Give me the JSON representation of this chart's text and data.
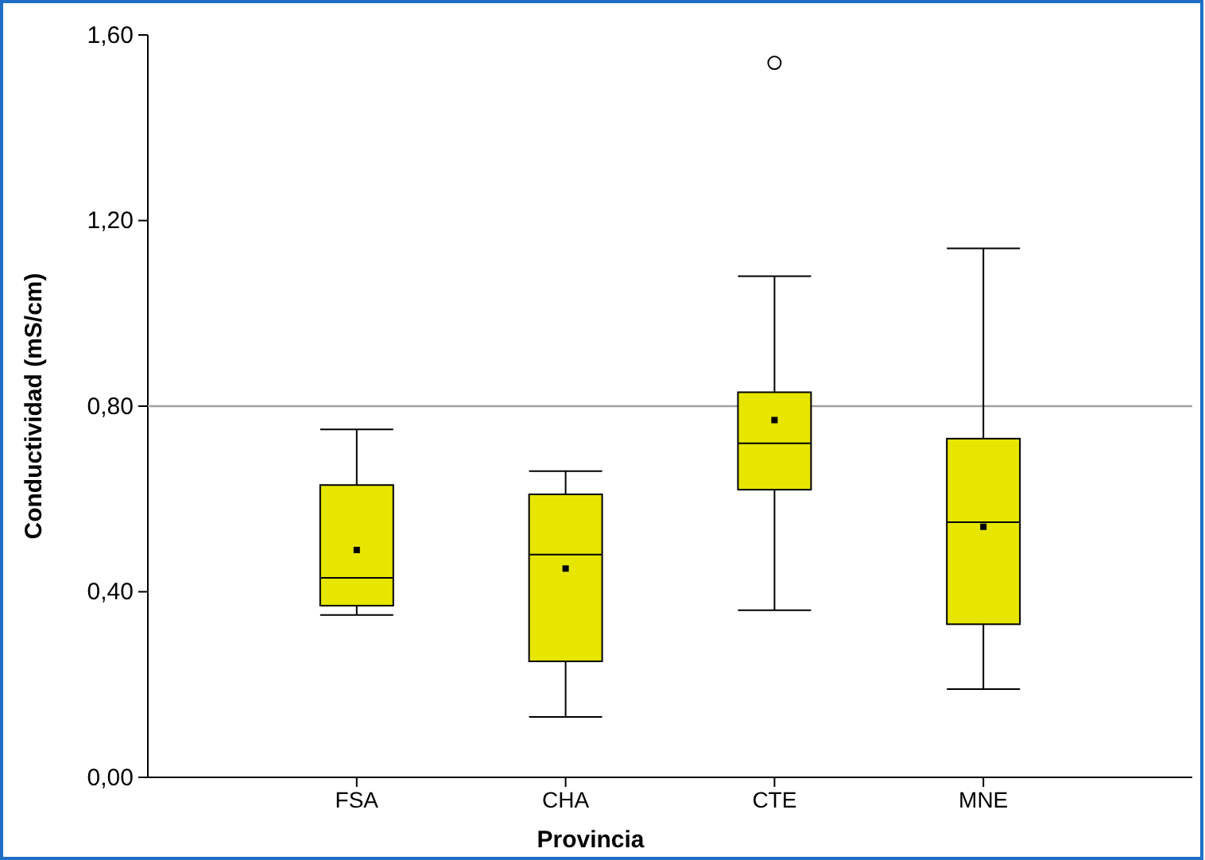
{
  "chart_data": {
    "type": "box",
    "xlabel": "Provincia",
    "ylabel": "Conductividad (mS/cm)",
    "categories": [
      "FSA",
      "CHA",
      "CTE",
      "MNE"
    ],
    "ylim": [
      0,
      1.6
    ],
    "yticks": [
      {
        "value": 0,
        "label": "0,00"
      },
      {
        "value": 0.4,
        "label": "0,40"
      },
      {
        "value": 0.8,
        "label": "0,80"
      },
      {
        "value": 1.2,
        "label": "1,20"
      },
      {
        "value": 1.6,
        "label": "1,60"
      }
    ],
    "series": [
      {
        "color": "#e6e600",
        "boxes": [
          {
            "low": 0.35,
            "q1": 0.37,
            "median": 0.43,
            "q3": 0.63,
            "high": 0.75,
            "mean": 0.49
          },
          {
            "low": 0.13,
            "q1": 0.25,
            "median": 0.48,
            "q3": 0.61,
            "high": 0.66,
            "mean": 0.45
          },
          {
            "low": 0.36,
            "q1": 0.62,
            "median": 0.72,
            "q3": 0.83,
            "high": 1.08,
            "mean": 0.77,
            "outliers": [
              1.54
            ]
          },
          {
            "low": 0.19,
            "q1": 0.33,
            "median": 0.55,
            "q3": 0.73,
            "high": 1.14,
            "mean": 0.54
          }
        ]
      }
    ],
    "ref_lines": [
      {
        "axis": "y",
        "value": 0.8,
        "color": "#a0a0a0"
      }
    ],
    "grid": false
  }
}
